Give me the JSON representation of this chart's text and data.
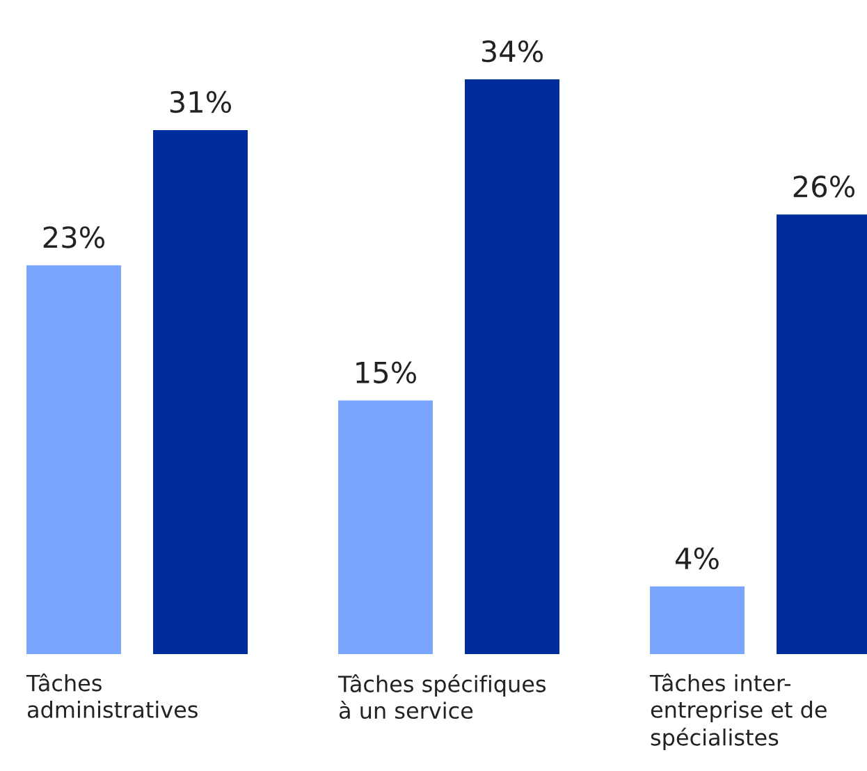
{
  "chart_data": {
    "type": "bar",
    "categories": [
      "Tâches administratives",
      "Tâches spécifiques à un service",
      "Tâches inter-entreprise et de spécialistes"
    ],
    "series": [
      {
        "color": "#7aa6ff",
        "values": [
          23,
          15,
          4
        ],
        "value_labels": [
          "23%",
          "15%",
          "4%"
        ]
      },
      {
        "color": "#002d9c",
        "values": [
          31,
          34,
          26
        ],
        "value_labels": [
          "31%",
          "34%",
          "26%"
        ]
      }
    ]
  }
}
